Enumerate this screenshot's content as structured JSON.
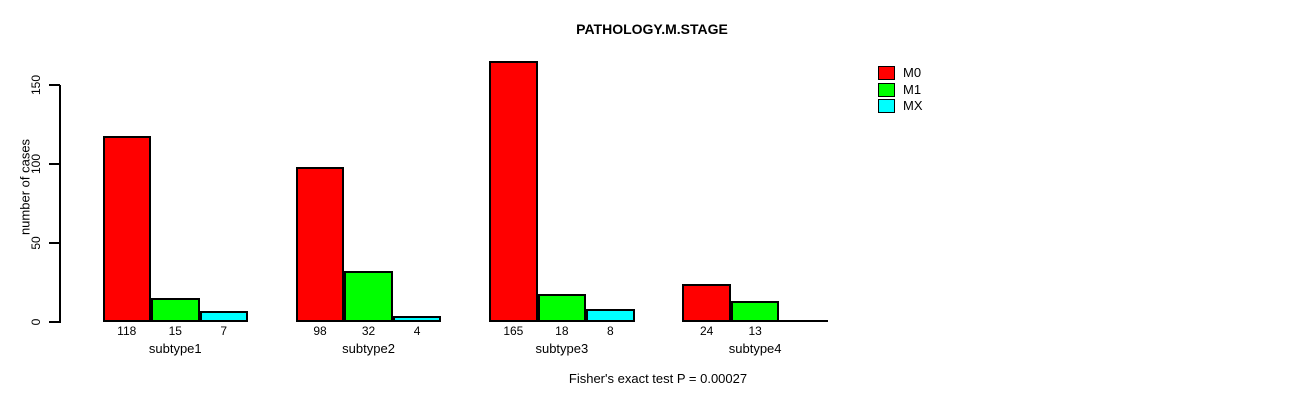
{
  "chart_data": {
    "type": "bar",
    "title": "PATHOLOGY.M.STAGE",
    "ylabel": "number of cases",
    "xlabel": "",
    "categories": [
      "subtype1",
      "subtype2",
      "subtype3",
      "subtype4"
    ],
    "series": [
      {
        "name": "M0",
        "color": "#ff0000",
        "values": [
          118,
          98,
          165,
          24
        ]
      },
      {
        "name": "M1",
        "color": "#00ff00",
        "values": [
          15,
          32,
          18,
          13
        ]
      },
      {
        "name": "MX",
        "color": "#00ffff",
        "values": [
          7,
          4,
          8,
          0
        ]
      }
    ],
    "bar_value_labels": [
      [
        "118",
        "98",
        "165",
        "24"
      ],
      [
        "15",
        "32",
        "18",
        "13"
      ],
      [
        "7",
        "4",
        "8",
        ""
      ]
    ],
    "yticks": [
      0,
      50,
      100,
      150
    ],
    "ylim": [
      0,
      165
    ],
    "grid": false,
    "legend": {
      "position": "top-right",
      "entries": [
        "M0",
        "M1",
        "MX"
      ]
    },
    "annotation": "Fisher's exact test P = 0.00027",
    "bar_border_color": "#000000",
    "axis_color": "#000000",
    "background": "#ffffff"
  }
}
